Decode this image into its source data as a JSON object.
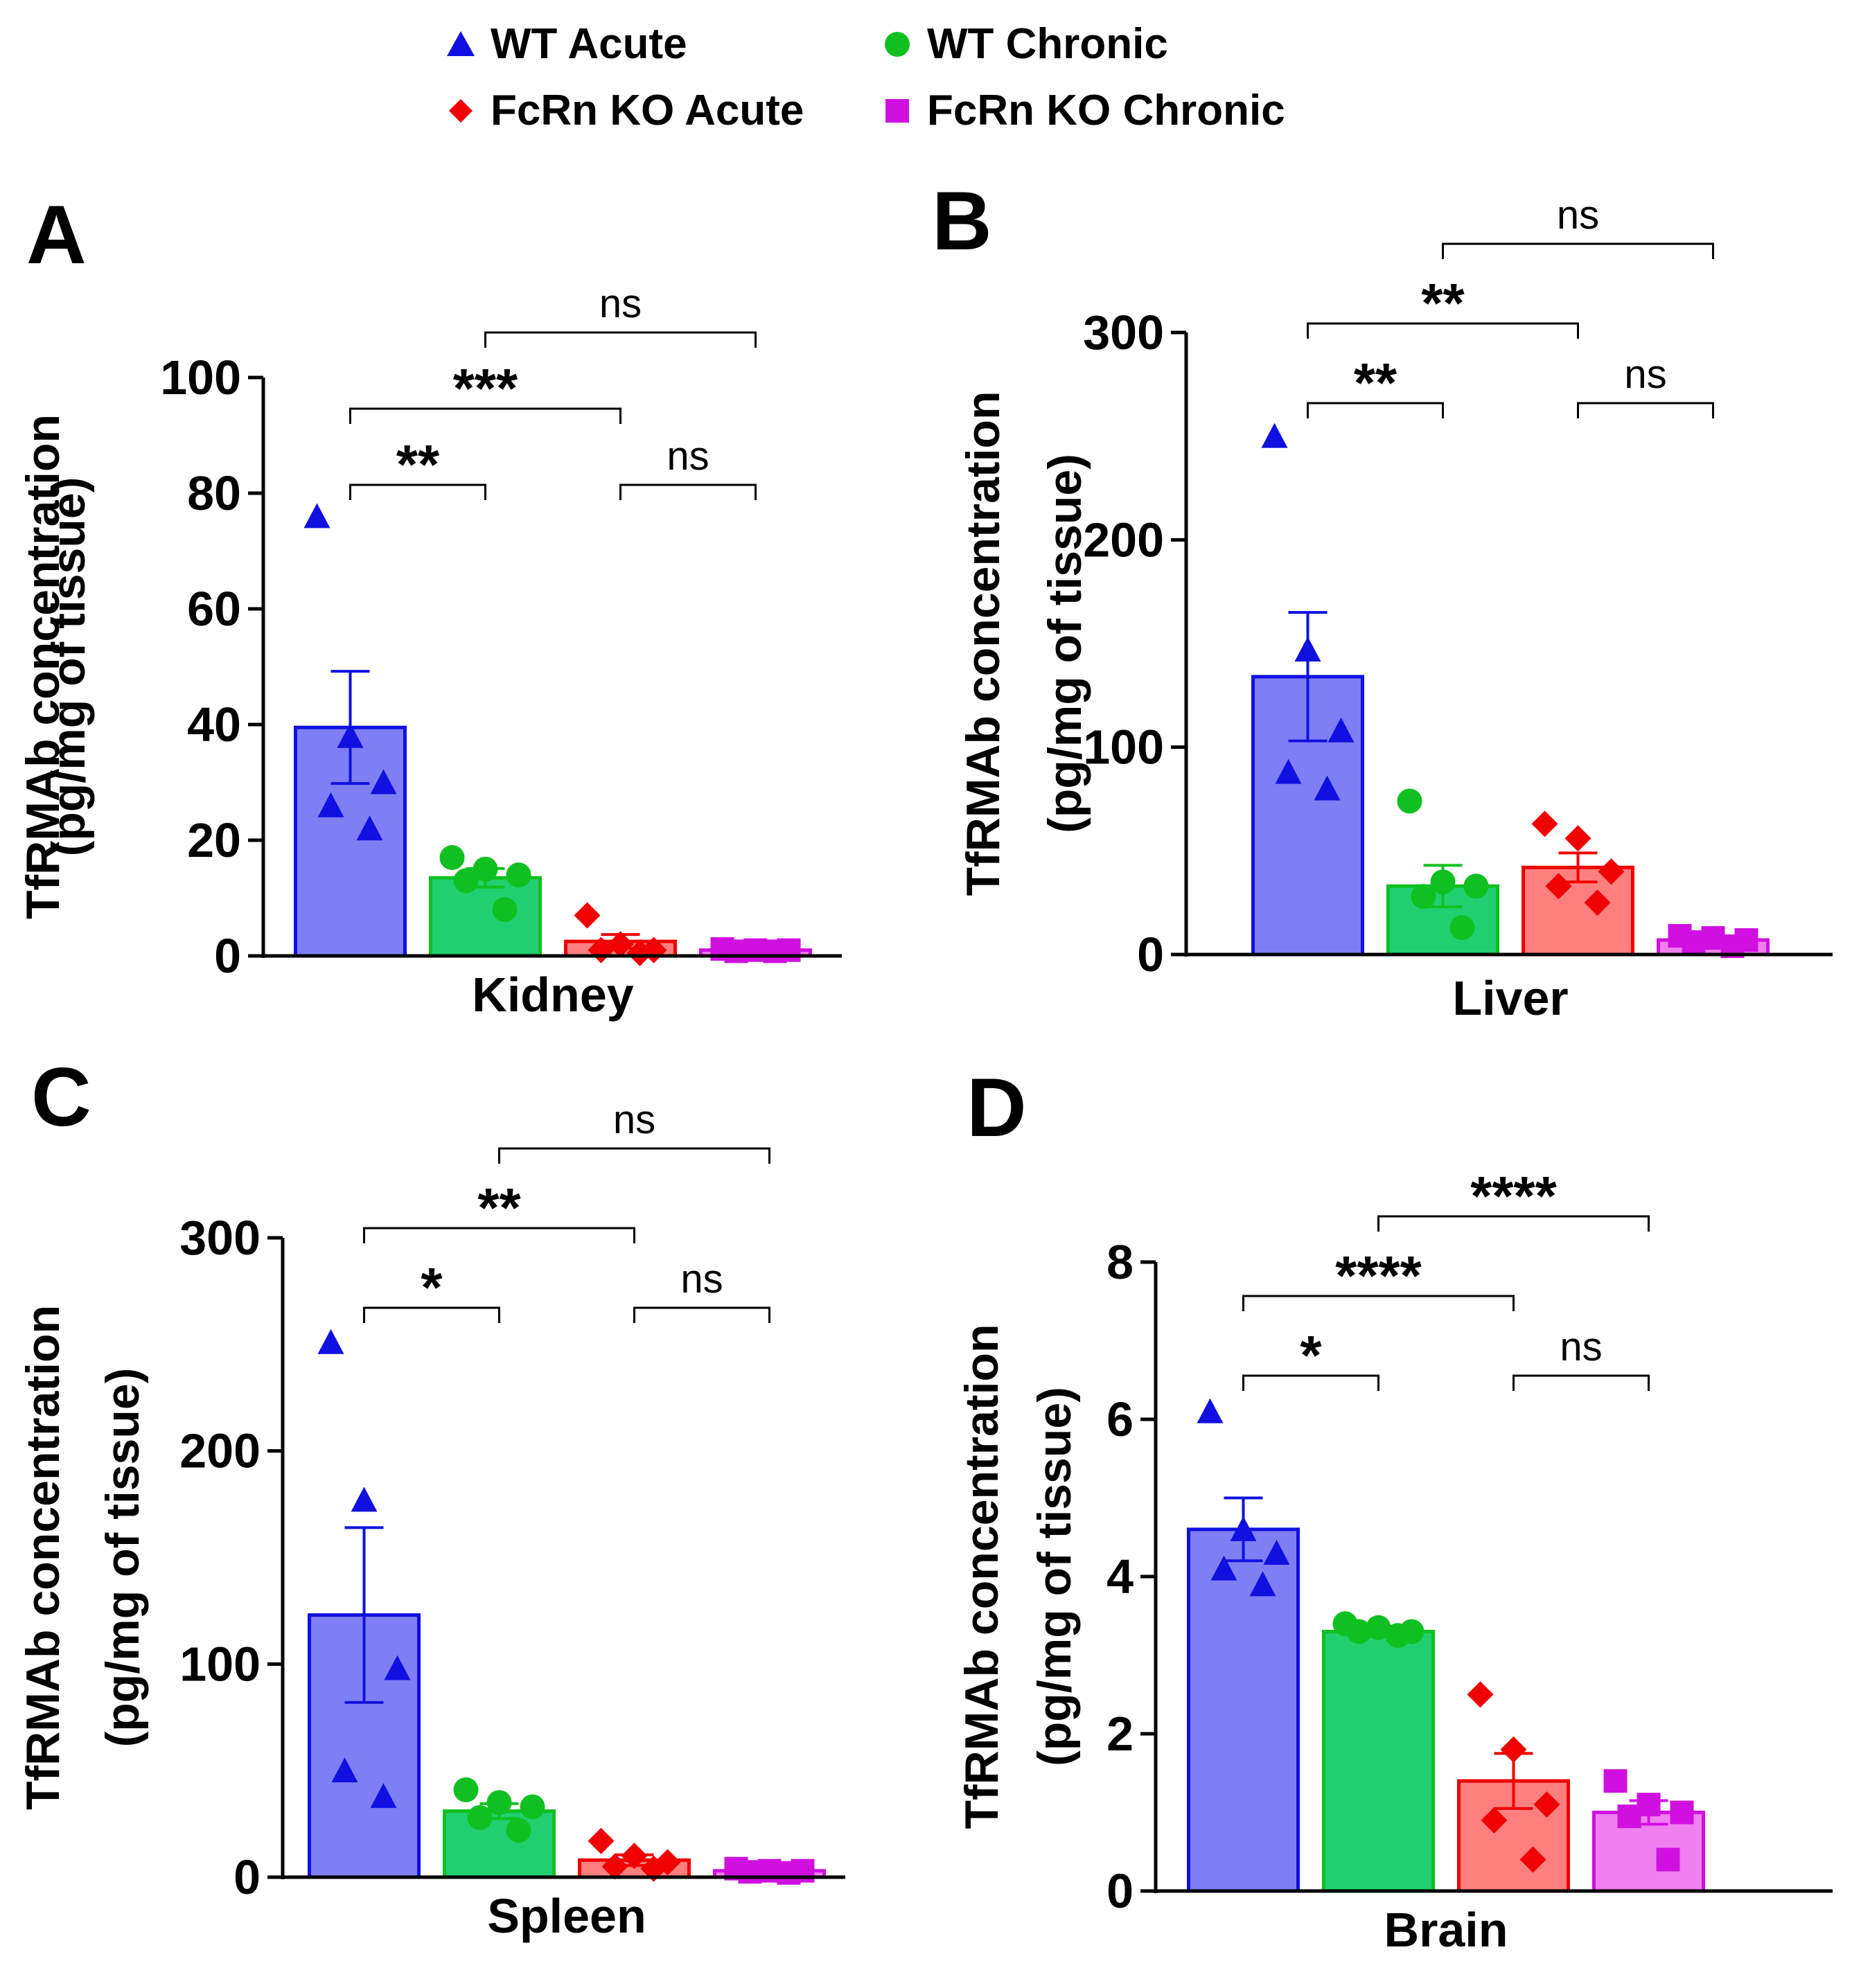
{
  "legend": [
    {
      "label": "WT Acute",
      "marker": "triangle",
      "color": "#1010e0",
      "fill": "#7f7ff5"
    },
    {
      "label": "WT Chronic",
      "marker": "circle",
      "color": "#10c020",
      "fill": "#20d070"
    },
    {
      "label": "FcRn KO Acute",
      "marker": "diamond",
      "color": "#f00000",
      "fill": "#ff7f7f"
    },
    {
      "label": "FcRn KO Chronic",
      "marker": "square",
      "color": "#d010e0",
      "fill": "#f080f0"
    }
  ],
  "chart_data": [
    {
      "panel": "A",
      "type": "bar",
      "xlabel": "Kidney",
      "ylabel": "TfRMAb concentration",
      "ylabel2": "(pg/mg of tissue)",
      "ylim": [
        0,
        100
      ],
      "yticks": [
        "0",
        "20",
        "40",
        "60",
        "80",
        "100"
      ],
      "series": [
        {
          "name": "WT Acute",
          "mean": 39.5,
          "sem": 9.7,
          "points": [
            76,
            38,
            30,
            26,
            22
          ]
        },
        {
          "name": "FcRn KO Acute",
          "mean": 13.5,
          "sem": 1.6,
          "points": [
            17,
            15,
            14,
            13,
            8
          ]
        },
        {
          "name": "WT Chronic",
          "mean": 2.5,
          "sem": 1.2,
          "points": [
            7,
            2,
            1,
            1,
            0.5
          ]
        },
        {
          "name": "FcRn KO Chronic",
          "mean": 1.0,
          "sem": 0.2,
          "points": [
            1.2,
            1,
            1,
            0.8,
            0.8
          ]
        }
      ],
      "comparisons": [
        {
          "from": 0,
          "to": 1,
          "label": "**",
          "level": 0
        },
        {
          "from": 2,
          "to": 3,
          "label": "ns",
          "level": 0
        },
        {
          "from": 0,
          "to": 2,
          "label": "***",
          "level": 1
        },
        {
          "from": 1,
          "to": 3,
          "label": "ns",
          "level": 2
        }
      ]
    },
    {
      "panel": "B",
      "type": "bar",
      "xlabel": "Liver",
      "ylabel": "TfRMAb concentration",
      "ylabel2": "(pg/mg of tissue)",
      "ylim": [
        0,
        300
      ],
      "yticks": [
        "0",
        "100",
        "200"
      ],
      "ytick_top": "300",
      "series": [
        {
          "name": "WT Acute",
          "mean": 134,
          "sem": 31,
          "points": [
            250,
            147,
            108,
            88,
            80
          ]
        },
        {
          "name": "FcRn KO Acute",
          "mean": 33,
          "sem": 10,
          "points": [
            74,
            35,
            33,
            28,
            13
          ]
        },
        {
          "name": "WT Chronic",
          "mean": 42,
          "sem": 7,
          "points": [
            63,
            56,
            40,
            33,
            25
          ]
        },
        {
          "name": "FcRn KO Chronic",
          "mean": 7,
          "sem": 1,
          "points": [
            9,
            8,
            7,
            6,
            4
          ]
        }
      ],
      "comparisons": [
        {
          "from": 0,
          "to": 1,
          "label": "**",
          "level": 0
        },
        {
          "from": 2,
          "to": 3,
          "label": "ns",
          "level": 0
        },
        {
          "from": 0,
          "to": 2,
          "label": "**",
          "level": 1
        },
        {
          "from": 1,
          "to": 3,
          "label": "ns",
          "level": 2
        }
      ]
    },
    {
      "panel": "C",
      "type": "bar",
      "xlabel": "Spleen",
      "ylabel": "TfRMAb concentration",
      "ylabel2": "(pg/mg of tissue)",
      "ylim": [
        0,
        300
      ],
      "yticks": [
        "0",
        "100",
        "200"
      ],
      "ytick_top": "300",
      "series": [
        {
          "name": "WT Acute",
          "mean": 123,
          "sem": 41,
          "points": [
            251,
            177,
            98,
            50,
            38
          ]
        },
        {
          "name": "FcRn KO Acute",
          "mean": 31,
          "sem": 3.5,
          "points": [
            41,
            35,
            33,
            28,
            22
          ]
        },
        {
          "name": "WT Chronic",
          "mean": 8,
          "sem": 2.5,
          "points": [
            17,
            10,
            7,
            5,
            4
          ]
        },
        {
          "name": "FcRn KO Chronic",
          "mean": 3,
          "sem": 0.5,
          "points": [
            4,
            3,
            3,
            2.5,
            2
          ]
        }
      ],
      "comparisons": [
        {
          "from": 0,
          "to": 1,
          "label": "*",
          "level": 0
        },
        {
          "from": 2,
          "to": 3,
          "label": "ns",
          "level": 0
        },
        {
          "from": 0,
          "to": 2,
          "label": "**",
          "level": 1
        },
        {
          "from": 1,
          "to": 3,
          "label": "ns",
          "level": 2
        }
      ]
    },
    {
      "panel": "D",
      "type": "bar",
      "xlabel": "Brain",
      "ylabel": "TfRMAb concentration",
      "ylabel2": "(pg/mg of tissue)",
      "ylim": [
        0,
        8
      ],
      "yticks": [
        "0",
        "2",
        "4",
        "6",
        "8"
      ],
      "series": [
        {
          "name": "WT Acute",
          "mean": 4.6,
          "sem": 0.4,
          "points": [
            6.1,
            4.6,
            4.3,
            4.1,
            3.9
          ]
        },
        {
          "name": "FcRn KO Acute",
          "mean": 3.3,
          "sem": 0.05,
          "points": [
            3.4,
            3.35,
            3.3,
            3.3,
            3.25
          ]
        },
        {
          "name": "WT Chronic",
          "mean": 1.4,
          "sem": 0.35,
          "points": [
            2.5,
            1.8,
            1.1,
            0.9,
            0.4
          ]
        },
        {
          "name": "FcRn KO Chronic",
          "mean": 1.0,
          "sem": 0.15,
          "points": [
            1.4,
            1.1,
            1.0,
            0.95,
            0.4
          ]
        }
      ],
      "comparisons": [
        {
          "from": 0,
          "to": 1,
          "label": "*",
          "level": 0
        },
        {
          "from": 2,
          "to": 3,
          "label": "ns",
          "level": 0
        },
        {
          "from": 0,
          "to": 2,
          "label": "****",
          "level": 1
        },
        {
          "from": 1,
          "to": 3,
          "label": "****",
          "level": 2
        }
      ]
    }
  ]
}
